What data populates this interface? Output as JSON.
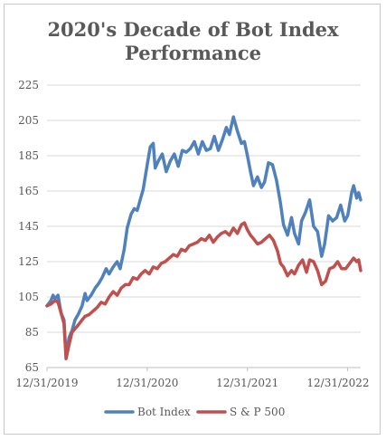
{
  "chart_data": {
    "type": "line",
    "title": [
      "2020's Decade of Bot Index",
      "Performance"
    ],
    "xlabel": "",
    "ylabel": "",
    "ylim": [
      65,
      225
    ],
    "y_ticks": [
      65,
      85,
      105,
      125,
      145,
      165,
      185,
      205,
      225
    ],
    "x_ticks": [
      "12/31/2019",
      "12/31/2020",
      "12/31/2021",
      "12/31/2022"
    ],
    "grid": true,
    "legend_position": "bottom",
    "series": [
      {
        "name": "Bot Index",
        "color": "#4f81bd",
        "points": [
          [
            0.0,
            100
          ],
          [
            0.04,
            103
          ],
          [
            0.06,
            106
          ],
          [
            0.08,
            104
          ],
          [
            0.11,
            106
          ],
          [
            0.14,
            96
          ],
          [
            0.17,
            92
          ],
          [
            0.19,
            71
          ],
          [
            0.22,
            82
          ],
          [
            0.25,
            86
          ],
          [
            0.28,
            92
          ],
          [
            0.31,
            95
          ],
          [
            0.35,
            100
          ],
          [
            0.38,
            107
          ],
          [
            0.4,
            103
          ],
          [
            0.44,
            106
          ],
          [
            0.48,
            110
          ],
          [
            0.52,
            113
          ],
          [
            0.55,
            116
          ],
          [
            0.59,
            121
          ],
          [
            0.62,
            118
          ],
          [
            0.66,
            122
          ],
          [
            0.7,
            125
          ],
          [
            0.73,
            121
          ],
          [
            0.77,
            132
          ],
          [
            0.8,
            144
          ],
          [
            0.84,
            152
          ],
          [
            0.87,
            155
          ],
          [
            0.9,
            154
          ],
          [
            0.93,
            160
          ],
          [
            0.96,
            166
          ],
          [
            1.0,
            180
          ],
          [
            1.03,
            190
          ],
          [
            1.06,
            192
          ],
          [
            1.08,
            178
          ],
          [
            1.11,
            182
          ],
          [
            1.15,
            186
          ],
          [
            1.19,
            176
          ],
          [
            1.23,
            182
          ],
          [
            1.27,
            186
          ],
          [
            1.31,
            179
          ],
          [
            1.35,
            188
          ],
          [
            1.39,
            187
          ],
          [
            1.43,
            189
          ],
          [
            1.47,
            193
          ],
          [
            1.51,
            186
          ],
          [
            1.55,
            193
          ],
          [
            1.59,
            188
          ],
          [
            1.63,
            189
          ],
          [
            1.67,
            196
          ],
          [
            1.71,
            188
          ],
          [
            1.75,
            194
          ],
          [
            1.79,
            201
          ],
          [
            1.82,
            197
          ],
          [
            1.86,
            207
          ],
          [
            1.9,
            199
          ],
          [
            1.94,
            192
          ],
          [
            1.97,
            193
          ],
          [
            2.0,
            185
          ],
          [
            2.03,
            176
          ],
          [
            2.06,
            168
          ],
          [
            2.1,
            173
          ],
          [
            2.14,
            167
          ],
          [
            2.17,
            170
          ],
          [
            2.21,
            181
          ],
          [
            2.25,
            180
          ],
          [
            2.29,
            171
          ],
          [
            2.33,
            158
          ],
          [
            2.36,
            146
          ],
          [
            2.4,
            140
          ],
          [
            2.44,
            150
          ],
          [
            2.47,
            141
          ],
          [
            2.51,
            135
          ],
          [
            2.54,
            148
          ],
          [
            2.58,
            153
          ],
          [
            2.62,
            160
          ],
          [
            2.66,
            145
          ],
          [
            2.7,
            142
          ],
          [
            2.74,
            128
          ],
          [
            2.77,
            135
          ],
          [
            2.81,
            151
          ],
          [
            2.85,
            148
          ],
          [
            2.89,
            150
          ],
          [
            2.93,
            157
          ],
          [
            2.97,
            148
          ],
          [
            3.0,
            151
          ],
          [
            3.04,
            164
          ],
          [
            3.06,
            168
          ],
          [
            3.09,
            161
          ],
          [
            3.11,
            164
          ],
          [
            3.13,
            160
          ]
        ]
      },
      {
        "name": "S & P 500",
        "color": "#c0504d",
        "points": [
          [
            0.0,
            100
          ],
          [
            0.04,
            101
          ],
          [
            0.08,
            103
          ],
          [
            0.11,
            102
          ],
          [
            0.14,
            96
          ],
          [
            0.17,
            90
          ],
          [
            0.19,
            70
          ],
          [
            0.22,
            78
          ],
          [
            0.25,
            85
          ],
          [
            0.28,
            87
          ],
          [
            0.31,
            89
          ],
          [
            0.35,
            92
          ],
          [
            0.38,
            94
          ],
          [
            0.42,
            95
          ],
          [
            0.46,
            97
          ],
          [
            0.5,
            99
          ],
          [
            0.54,
            102
          ],
          [
            0.58,
            101
          ],
          [
            0.62,
            105
          ],
          [
            0.66,
            108
          ],
          [
            0.7,
            106
          ],
          [
            0.74,
            110
          ],
          [
            0.78,
            112
          ],
          [
            0.82,
            112
          ],
          [
            0.86,
            116
          ],
          [
            0.9,
            115
          ],
          [
            0.94,
            118
          ],
          [
            0.98,
            120
          ],
          [
            1.02,
            118
          ],
          [
            1.06,
            122
          ],
          [
            1.1,
            121
          ],
          [
            1.14,
            124
          ],
          [
            1.18,
            125
          ],
          [
            1.22,
            127
          ],
          [
            1.26,
            129
          ],
          [
            1.3,
            128
          ],
          [
            1.34,
            132
          ],
          [
            1.38,
            131
          ],
          [
            1.42,
            134
          ],
          [
            1.46,
            135
          ],
          [
            1.5,
            136
          ],
          [
            1.54,
            138
          ],
          [
            1.58,
            137
          ],
          [
            1.62,
            140
          ],
          [
            1.66,
            136
          ],
          [
            1.7,
            139
          ],
          [
            1.74,
            141
          ],
          [
            1.78,
            142
          ],
          [
            1.82,
            140
          ],
          [
            1.86,
            144
          ],
          [
            1.9,
            141
          ],
          [
            1.94,
            146
          ],
          [
            1.97,
            147
          ],
          [
            2.0,
            143
          ],
          [
            2.03,
            140
          ],
          [
            2.06,
            138
          ],
          [
            2.1,
            135
          ],
          [
            2.14,
            136
          ],
          [
            2.18,
            138
          ],
          [
            2.22,
            140
          ],
          [
            2.26,
            137
          ],
          [
            2.3,
            131
          ],
          [
            2.33,
            124
          ],
          [
            2.36,
            122
          ],
          [
            2.4,
            117
          ],
          [
            2.44,
            120
          ],
          [
            2.47,
            118
          ],
          [
            2.51,
            123
          ],
          [
            2.55,
            126
          ],
          [
            2.59,
            119
          ],
          [
            2.62,
            126
          ],
          [
            2.66,
            125
          ],
          [
            2.7,
            120
          ],
          [
            2.74,
            112
          ],
          [
            2.78,
            114
          ],
          [
            2.82,
            121
          ],
          [
            2.86,
            122
          ],
          [
            2.9,
            125
          ],
          [
            2.94,
            121
          ],
          [
            2.98,
            121
          ],
          [
            3.02,
            124
          ],
          [
            3.06,
            127
          ],
          [
            3.09,
            125
          ],
          [
            3.11,
            126
          ],
          [
            3.13,
            120
          ]
        ]
      }
    ]
  }
}
